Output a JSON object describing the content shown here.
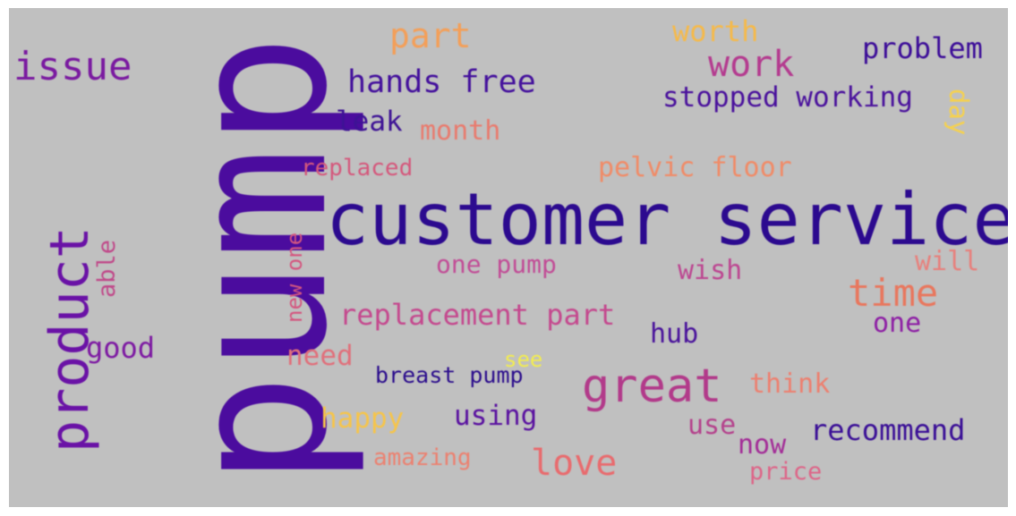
{
  "words": [
    {
      "text": "pump",
      "color": "#4b0c9e"
    },
    {
      "text": "customer service",
      "color": "#2c0a8f"
    },
    {
      "text": "product",
      "color": "#6a12a6"
    },
    {
      "text": "issue",
      "color": "#7a1aa0"
    },
    {
      "text": "great",
      "color": "#b23a8a"
    },
    {
      "text": "time",
      "color": "#e8775e"
    },
    {
      "text": "work",
      "color": "#b43b8f"
    },
    {
      "text": "part",
      "color": "#f39f59"
    },
    {
      "text": "worth",
      "color": "#f5b94a"
    },
    {
      "text": "problem",
      "color": "#3c0d98"
    },
    {
      "text": "hands free",
      "color": "#44119c"
    },
    {
      "text": "stopped working",
      "color": "#4a129c"
    },
    {
      "text": "leak",
      "color": "#3e1395"
    },
    {
      "text": "month",
      "color": "#e87b6e"
    },
    {
      "text": "day",
      "color": "#f5d14f"
    },
    {
      "text": "replaced",
      "color": "#d4587c"
    },
    {
      "text": "pelvic floor",
      "color": "#f08b67"
    },
    {
      "text": "able",
      "color": "#c04a8a"
    },
    {
      "text": "new one",
      "color": "#d4567f"
    },
    {
      "text": "one pump",
      "color": "#c14d96"
    },
    {
      "text": "wish",
      "color": "#bc4791"
    },
    {
      "text": "will",
      "color": "#e7807c"
    },
    {
      "text": "replacement part",
      "color": "#c4498e"
    },
    {
      "text": "one",
      "color": "#8d1fa4"
    },
    {
      "text": "hub",
      "color": "#4a149b"
    },
    {
      "text": "good",
      "color": "#7d1aa2"
    },
    {
      "text": "need",
      "color": "#e0707b"
    },
    {
      "text": "see",
      "color": "#f2ec50"
    },
    {
      "text": "breast pump",
      "color": "#2b0d8c"
    },
    {
      "text": "think",
      "color": "#ec8070"
    },
    {
      "text": "happy",
      "color": "#f5c44b"
    },
    {
      "text": "using",
      "color": "#5a12a0"
    },
    {
      "text": "use",
      "color": "#b4428c"
    },
    {
      "text": "recommend",
      "color": "#3a0f96"
    },
    {
      "text": "now",
      "color": "#a32d97"
    },
    {
      "text": "love",
      "color": "#e86b6e"
    },
    {
      "text": "amazing",
      "color": "#eb8170"
    },
    {
      "text": "price",
      "color": "#dd6588"
    }
  ]
}
